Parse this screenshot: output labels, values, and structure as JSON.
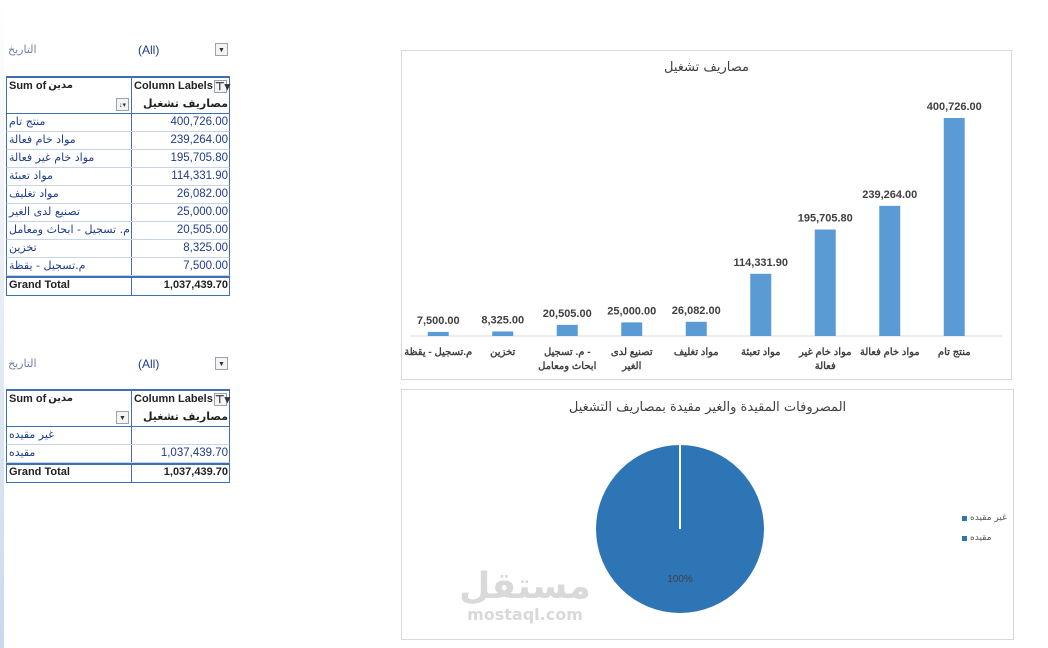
{
  "pivot1": {
    "filter": {
      "label": "التاريخ",
      "value": "(All)"
    },
    "header": {
      "sum_label": "Sum of",
      "sum_arabic": "مدين",
      "column_labels": "Column Labels"
    },
    "value_header": "مصاريف تشغيل",
    "rows": [
      {
        "label": "منتج تام",
        "value": "400,726.00"
      },
      {
        "label": "مواد خام فعالة",
        "value": "239,264.00"
      },
      {
        "label": "مواد خام غير فعالة",
        "value": "195,705.80"
      },
      {
        "label": "مواد تعبئة",
        "value": "114,331.90"
      },
      {
        "label": "مواد تغليف",
        "value": "26,082.00"
      },
      {
        "label": "تصنيع لدى الغير",
        "value": "25,000.00"
      },
      {
        "label": "م. تسجيل - ابحاث ومعامل",
        "value": "20,505.00"
      },
      {
        "label": "تخزين",
        "value": "8,325.00"
      },
      {
        "label": "م.تسجيل - يقظة",
        "value": "7,500.00"
      }
    ],
    "total": {
      "label": "Grand Total",
      "value": "1,037,439.70"
    }
  },
  "pivot2": {
    "filter": {
      "label": "التاريخ",
      "value": "(All)"
    },
    "header": {
      "sum_label": "Sum of",
      "sum_arabic": "مدين",
      "column_labels": "Column Labels"
    },
    "value_header": "مصاريف تشغيل",
    "rows": [
      {
        "label": "غير مقيده",
        "value": ""
      },
      {
        "label": "مقيده",
        "value": "1,037,439.70"
      }
    ],
    "total": {
      "label": "Grand Total",
      "value": "1,037,439.70"
    }
  },
  "icons": {
    "dropdown": "▼",
    "filter": "⊤▾",
    "sort": "↓▾"
  },
  "colors": {
    "bar": "#5b9bd5",
    "pie": "#2e75b6",
    "table_border": "#3e6fb3",
    "row_text": "#1f3c8c"
  },
  "chart_data": [
    {
      "type": "bar",
      "title": "مصاريف تشغيل",
      "categories": [
        "منتج تام",
        "مواد خام فعالة",
        "مواد خام غير فعالة",
        "مواد تعبئة",
        "مواد تغليف",
        "تصنيع لدى الغير",
        "م. تسجيل - ابحاث ومعامل",
        "تخزين",
        "م.تسجيل - يقظة"
      ],
      "category_lines": [
        [
          "منتج تام"
        ],
        [
          "مواد خام فعالة"
        ],
        [
          "مواد خام غير",
          "فعالة"
        ],
        [
          "مواد تعبئة"
        ],
        [
          "مواد تغليف"
        ],
        [
          "تصنيع لدى",
          "الغير"
        ],
        [
          "م. تسجيل -",
          "ابحاث ومعامل"
        ],
        [
          "تخزين"
        ],
        [
          "م.تسجيل - يقظة"
        ]
      ],
      "values": [
        400726.0,
        239264.0,
        195705.8,
        114331.9,
        26082.0,
        25000.0,
        20505.0,
        8325.0,
        7500.0
      ],
      "data_labels": [
        "400,726.00",
        "239,264.00",
        "195,705.80",
        "114,331.90",
        "26,082.00",
        "25,000.00",
        "20,505.00",
        "8,325.00",
        "7,500.00"
      ],
      "grid": false,
      "legend": "none"
    },
    {
      "type": "pie",
      "title": "المصروفات المقيدة والغير مقيدة بمصاريف التشغيل",
      "labels": [
        "غير مقيده",
        "مقيده"
      ],
      "values": [
        0,
        1037439.7
      ],
      "data_labels": [
        "",
        "100%"
      ],
      "legend": "right"
    }
  ]
}
